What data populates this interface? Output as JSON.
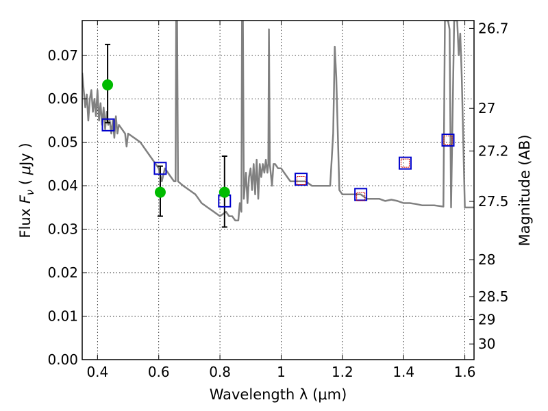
{
  "chart_data": {
    "type": "scatter",
    "xlabel": "Wavelength  λ (μm)",
    "ylabel": "Flux  F_ν  ( μJy )",
    "ylabel_parts": [
      "Flux  ",
      "F",
      "ν",
      "  ( ",
      "μ",
      "Jy )"
    ],
    "y2label": "Magnitude (AB)",
    "xlim": [
      0.35,
      1.63
    ],
    "ylim": [
      0.0,
      0.078
    ],
    "grid": true,
    "x_ticks": [
      0.4,
      0.6,
      0.8,
      1.0,
      1.2,
      1.4,
      1.6
    ],
    "x_tick_labels": [
      "0.4",
      "0.6",
      "0.8",
      "1",
      "1.2",
      "1.4",
      "1.6"
    ],
    "y_ticks": [
      0.0,
      0.01,
      0.02,
      0.03,
      0.04,
      0.05,
      0.06,
      0.07
    ],
    "y_tick_labels": [
      "0.00",
      "0.01",
      "0.02",
      "0.03",
      "0.04",
      "0.05",
      "0.06",
      "0.07"
    ],
    "y2_ticks": [
      {
        "label": "26.7",
        "flux": 0.0762
      },
      {
        "label": "27",
        "flux": 0.0578
      },
      {
        "label": "27.2",
        "flux": 0.048
      },
      {
        "label": "27.5",
        "flux": 0.0364
      },
      {
        "label": "28",
        "flux": 0.023
      },
      {
        "label": "28.5",
        "flux": 0.0145
      },
      {
        "label": "29",
        "flux": 0.0092
      },
      {
        "label": "30",
        "flux": 0.0036
      }
    ],
    "series": [
      {
        "kind": "spectrum",
        "color": "#808080",
        "points": [
          [
            0.35,
            0.066
          ],
          [
            0.355,
            0.062
          ],
          [
            0.36,
            0.058
          ],
          [
            0.365,
            0.061
          ],
          [
            0.37,
            0.055
          ],
          [
            0.375,
            0.06
          ],
          [
            0.38,
            0.062
          ],
          [
            0.385,
            0.057
          ],
          [
            0.39,
            0.06
          ],
          [
            0.395,
            0.056
          ],
          [
            0.4,
            0.062
          ],
          [
            0.405,
            0.055
          ],
          [
            0.41,
            0.059
          ],
          [
            0.415,
            0.054
          ],
          [
            0.42,
            0.058
          ],
          [
            0.425,
            0.053
          ],
          [
            0.43,
            0.057
          ],
          [
            0.435,
            0.054
          ],
          [
            0.44,
            0.055
          ],
          [
            0.445,
            0.052
          ],
          [
            0.45,
            0.055
          ],
          [
            0.455,
            0.051
          ],
          [
            0.46,
            0.056
          ],
          [
            0.465,
            0.052
          ],
          [
            0.47,
            0.054
          ],
          [
            0.48,
            0.053
          ],
          [
            0.49,
            0.052
          ],
          [
            0.495,
            0.049
          ],
          [
            0.5,
            0.052
          ],
          [
            0.52,
            0.051
          ],
          [
            0.54,
            0.05
          ],
          [
            0.56,
            0.048
          ],
          [
            0.58,
            0.046
          ],
          [
            0.6,
            0.044
          ],
          [
            0.61,
            0.041
          ],
          [
            0.62,
            0.044
          ],
          [
            0.63,
            0.043
          ],
          [
            0.64,
            0.042
          ],
          [
            0.65,
            0.041
          ],
          [
            0.655,
            0.041
          ],
          [
            0.657,
            0.078
          ],
          [
            0.66,
            0.078
          ],
          [
            0.663,
            0.041
          ],
          [
            0.68,
            0.04
          ],
          [
            0.7,
            0.039
          ],
          [
            0.72,
            0.038
          ],
          [
            0.74,
            0.036
          ],
          [
            0.76,
            0.035
          ],
          [
            0.78,
            0.034
          ],
          [
            0.8,
            0.033
          ],
          [
            0.82,
            0.034
          ],
          [
            0.83,
            0.033
          ],
          [
            0.84,
            0.033
          ],
          [
            0.85,
            0.032
          ],
          [
            0.86,
            0.032
          ],
          [
            0.865,
            0.036
          ],
          [
            0.87,
            0.034
          ],
          [
            0.872,
            0.078
          ],
          [
            0.875,
            0.078
          ],
          [
            0.878,
            0.037
          ],
          [
            0.885,
            0.043
          ],
          [
            0.89,
            0.036
          ],
          [
            0.895,
            0.042
          ],
          [
            0.9,
            0.044
          ],
          [
            0.905,
            0.039
          ],
          [
            0.91,
            0.045
          ],
          [
            0.915,
            0.038
          ],
          [
            0.92,
            0.046
          ],
          [
            0.925,
            0.037
          ],
          [
            0.93,
            0.045
          ],
          [
            0.935,
            0.042
          ],
          [
            0.94,
            0.045
          ],
          [
            0.945,
            0.043
          ],
          [
            0.95,
            0.046
          ],
          [
            0.955,
            0.043
          ],
          [
            0.958,
            0.045
          ],
          [
            0.96,
            0.076
          ],
          [
            0.963,
            0.045
          ],
          [
            0.97,
            0.04
          ],
          [
            0.975,
            0.045
          ],
          [
            0.98,
            0.045
          ],
          [
            0.99,
            0.044
          ],
          [
            1.0,
            0.044
          ],
          [
            1.01,
            0.043
          ],
          [
            1.02,
            0.042
          ],
          [
            1.03,
            0.041
          ],
          [
            1.04,
            0.041
          ],
          [
            1.05,
            0.041
          ],
          [
            1.06,
            0.041
          ],
          [
            1.07,
            0.041
          ],
          [
            1.08,
            0.041
          ],
          [
            1.1,
            0.04
          ],
          [
            1.12,
            0.04
          ],
          [
            1.14,
            0.04
          ],
          [
            1.15,
            0.04
          ],
          [
            1.16,
            0.04
          ],
          [
            1.17,
            0.052
          ],
          [
            1.175,
            0.072
          ],
          [
            1.18,
            0.065
          ],
          [
            1.19,
            0.039
          ],
          [
            1.2,
            0.038
          ],
          [
            1.22,
            0.038
          ],
          [
            1.24,
            0.038
          ],
          [
            1.26,
            0.038
          ],
          [
            1.28,
            0.037
          ],
          [
            1.3,
            0.037
          ],
          [
            1.32,
            0.037
          ],
          [
            1.34,
            0.0365
          ],
          [
            1.36,
            0.0368
          ],
          [
            1.38,
            0.0365
          ],
          [
            1.4,
            0.036
          ],
          [
            1.42,
            0.036
          ],
          [
            1.44,
            0.0358
          ],
          [
            1.46,
            0.0355
          ],
          [
            1.5,
            0.0355
          ],
          [
            1.53,
            0.0352
          ],
          [
            1.535,
            0.078
          ],
          [
            1.545,
            0.078
          ],
          [
            1.55,
            0.076
          ],
          [
            1.555,
            0.035
          ],
          [
            1.565,
            0.078
          ],
          [
            1.575,
            0.078
          ],
          [
            1.58,
            0.07
          ],
          [
            1.585,
            0.075
          ],
          [
            1.59,
            0.065
          ],
          [
            1.6,
            0.035
          ],
          [
            1.63,
            0.035
          ]
        ]
      },
      {
        "kind": "model_boxes",
        "color": "#0000cc",
        "points": [
          [
            0.435,
            0.054
          ],
          [
            0.605,
            0.044
          ],
          [
            0.815,
            0.0365
          ],
          [
            1.065,
            0.0415
          ],
          [
            1.26,
            0.038
          ],
          [
            1.405,
            0.0452
          ],
          [
            1.545,
            0.0505
          ]
        ]
      },
      {
        "kind": "inner_boxes",
        "color": "#cc0000",
        "points": [
          [
            1.065,
            0.0412
          ],
          [
            1.26,
            0.0375
          ],
          [
            1.405,
            0.0452
          ],
          [
            1.545,
            0.0505
          ]
        ]
      },
      {
        "kind": "observed",
        "color": "#00bb00",
        "points": [
          [
            0.433,
            0.0632
          ],
          [
            0.605,
            0.0385
          ],
          [
            0.815,
            0.0385
          ]
        ]
      },
      {
        "kind": "errorbars",
        "color": "#000000",
        "bars": [
          {
            "x": 0.433,
            "low": 0.0545,
            "high": 0.0725
          },
          {
            "x": 0.605,
            "low": 0.033,
            "high": 0.0445
          },
          {
            "x": 0.815,
            "low": 0.0305,
            "high": 0.0468
          }
        ]
      }
    ]
  }
}
